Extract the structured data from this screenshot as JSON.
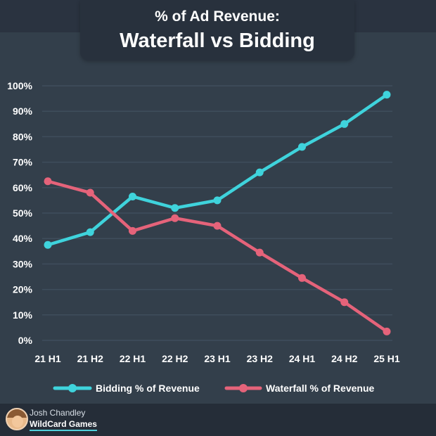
{
  "header": {
    "line1": "% of Ad Revenue:",
    "line2": "Waterfall vs Bidding"
  },
  "footer": {
    "author": "Josh Chandley",
    "brand": "WildCard Games"
  },
  "colors": {
    "bidding": "#3fd3dc",
    "waterfall": "#e5637a",
    "background": "#333f4b",
    "grid": "#3f4e5c",
    "text": "#ffffff"
  },
  "chart_data": {
    "type": "line",
    "title": "% of Ad Revenue: Waterfall vs Bidding",
    "categories": [
      "21 H1",
      "21 H2",
      "22 H1",
      "22 H2",
      "23 H1",
      "23 H2",
      "24 H1",
      "24 H2",
      "25 H1"
    ],
    "series": [
      {
        "name": "Bidding % of Revenue",
        "color": "#3fd3dc",
        "values": [
          37.5,
          42.5,
          56.5,
          52,
          55,
          66,
          76,
          85,
          96.5
        ]
      },
      {
        "name": "Waterfall % of Revenue",
        "color": "#e5637a",
        "values": [
          62.5,
          58,
          43,
          48,
          45,
          34.5,
          24.5,
          15,
          3.5
        ]
      }
    ],
    "y_ticks": [
      "0%",
      "10%",
      "20%",
      "30%",
      "40%",
      "50%",
      "60%",
      "70%",
      "80%",
      "90%",
      "100%"
    ],
    "ylim": [
      0,
      100
    ],
    "grid": true,
    "legend_position": "bottom"
  }
}
